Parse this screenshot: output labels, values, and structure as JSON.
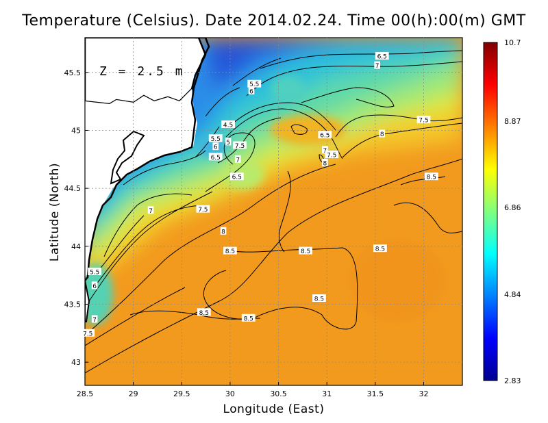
{
  "figure": {
    "title": "Temperature (Celsius). Date 2014.02.24. Time 00(h):00(m)  GMT",
    "xlabel": "Longitude (East)",
    "ylabel": "Latitude (North)",
    "depth_label": "Z  =  2.5  m"
  },
  "chart_data": {
    "type": "heatmap",
    "variable": "Temperature (Celsius)",
    "xlim": [
      28.5,
      32.4
    ],
    "ylim": [
      42.8,
      45.8
    ],
    "x_ticks": [
      28.5,
      29,
      29.5,
      30,
      30.5,
      31,
      31.5,
      32
    ],
    "x_tick_labels": [
      "28.5",
      "29",
      "29.5",
      "30",
      "30.5",
      "31",
      "31.5",
      "32"
    ],
    "y_ticks": [
      43,
      43.5,
      44,
      44.5,
      45,
      45.5
    ],
    "y_tick_labels": [
      "43",
      "43.5",
      "44",
      "44.5",
      "45",
      "45.5"
    ],
    "grid": true,
    "colorbar": {
      "min": 2.83,
      "max": 10.7,
      "ticks": [
        2.83,
        4.84,
        6.86,
        8.87,
        10.7
      ],
      "tick_labels": [
        "2.83",
        "4.84",
        "6.86",
        "8.87",
        "10.7"
      ],
      "colormap": "jet"
    },
    "contour_labels": [
      {
        "value": "5.5",
        "lon": 28.6,
        "lat": 43.78
      },
      {
        "value": "6",
        "lon": 28.6,
        "lat": 43.66
      },
      {
        "value": "7",
        "lon": 28.6,
        "lat": 43.37
      },
      {
        "value": "7.5",
        "lon": 28.53,
        "lat": 43.25
      },
      {
        "value": "7",
        "lon": 29.18,
        "lat": 44.31
      },
      {
        "value": "7.5",
        "lon": 29.72,
        "lat": 44.32
      },
      {
        "value": "8",
        "lon": 29.93,
        "lat": 44.13
      },
      {
        "value": "8.5",
        "lon": 30.0,
        "lat": 43.96
      },
      {
        "value": "8.5",
        "lon": 30.78,
        "lat": 43.96
      },
      {
        "value": "8.5",
        "lon": 31.55,
        "lat": 43.98
      },
      {
        "value": "8.5",
        "lon": 30.92,
        "lat": 43.55
      },
      {
        "value": "8.5",
        "lon": 29.73,
        "lat": 43.43
      },
      {
        "value": "8.5",
        "lon": 30.19,
        "lat": 43.38
      },
      {
        "value": "8.5",
        "lon": 32.08,
        "lat": 44.6
      },
      {
        "value": "4.5",
        "lon": 29.98,
        "lat": 45.05
      },
      {
        "value": "5.5",
        "lon": 29.85,
        "lat": 44.93
      },
      {
        "value": "6",
        "lon": 29.85,
        "lat": 44.86
      },
      {
        "value": "5",
        "lon": 29.98,
        "lat": 44.9
      },
      {
        "value": "6.5",
        "lon": 29.85,
        "lat": 44.77
      },
      {
        "value": "7.5",
        "lon": 30.1,
        "lat": 44.87
      },
      {
        "value": "7",
        "lon": 30.08,
        "lat": 44.75
      },
      {
        "value": "6.5",
        "lon": 30.07,
        "lat": 44.6
      },
      {
        "value": "5.5",
        "lon": 30.25,
        "lat": 45.4
      },
      {
        "value": "6",
        "lon": 30.22,
        "lat": 45.34
      },
      {
        "value": "6.5",
        "lon": 31.57,
        "lat": 45.64
      },
      {
        "value": "7",
        "lon": 31.52,
        "lat": 45.56
      },
      {
        "value": "6.5",
        "lon": 30.98,
        "lat": 44.96
      },
      {
        "value": "7",
        "lon": 30.98,
        "lat": 44.83
      },
      {
        "value": "7.5",
        "lon": 31.05,
        "lat": 44.79
      },
      {
        "value": "8",
        "lon": 30.98,
        "lat": 44.72
      },
      {
        "value": "8",
        "lon": 31.57,
        "lat": 44.97
      },
      {
        "value": "7.5",
        "lon": 32.0,
        "lat": 45.09
      }
    ]
  },
  "colors": {
    "land": "#ffffff",
    "coastline": "#000000",
    "contour": "#000000",
    "warm": "#f29a1e",
    "cold": "#2b5be0"
  }
}
